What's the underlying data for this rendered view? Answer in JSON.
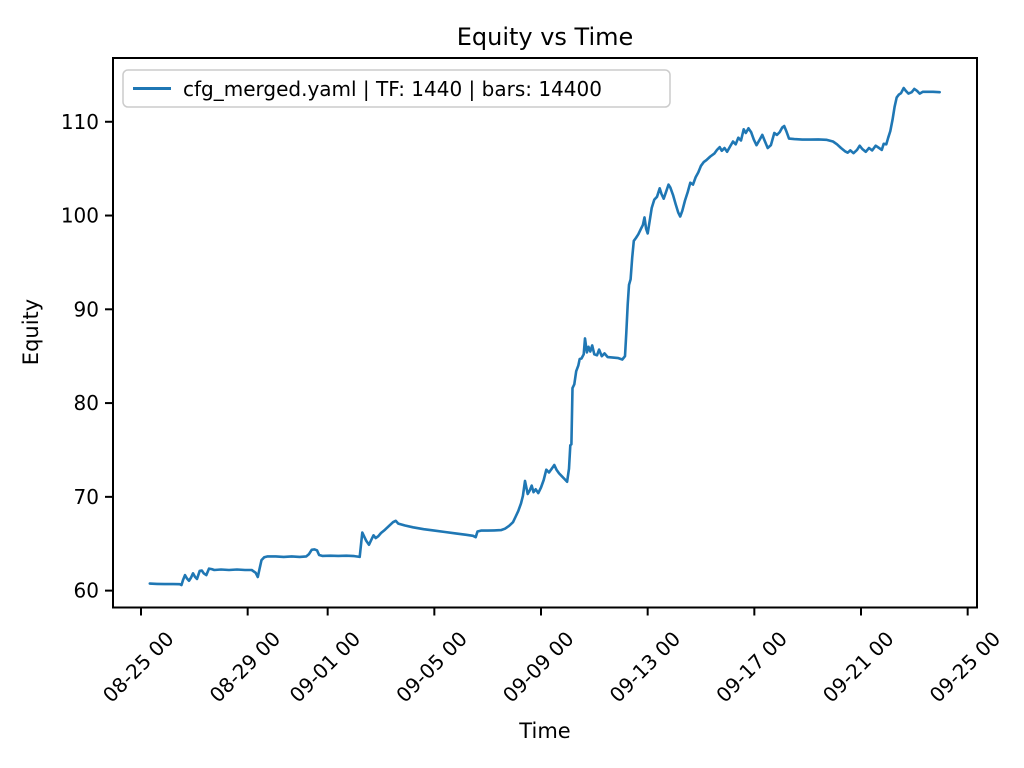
{
  "figure": {
    "title": "Equity vs Time",
    "x_label": "Time",
    "y_label": "Equity",
    "legend_label": "cfg_merged.yaml | TF: 1440 | bars: 14400",
    "colors": {
      "line": "#1f77b4",
      "text": "#000000",
      "legend_border": "#cccccc",
      "background": "#ffffff"
    }
  },
  "chart_data": {
    "type": "line",
    "title": "Equity vs Time",
    "xlabel": "Time",
    "ylabel": "Equity",
    "grid": false,
    "legend_position": "upper left",
    "legend_entries": [
      "cfg_merged.yaml | TF: 1440 | bars: 14400"
    ],
    "x_axis": {
      "tick_labels": [
        "08-25 00",
        "08-29 00",
        "09-01 00",
        "09-05 00",
        "09-09 00",
        "09-13 00",
        "09-17 00",
        "09-21 00",
        "09-25 00"
      ],
      "tick_days": [
        0,
        4,
        7,
        11,
        15,
        19,
        23,
        27,
        31
      ],
      "domain_days": [
        -1.05,
        31.35
      ],
      "tick_label_rotation_deg": 45,
      "x_unit": "days since 08-25 00:00"
    },
    "y_axis": {
      "ticks": [
        60,
        70,
        80,
        90,
        100,
        110
      ],
      "domain": [
        58.2,
        116.8
      ]
    },
    "series": [
      {
        "name": "cfg_merged.yaml | TF: 1440 | bars: 14400",
        "color": "#1f77b4",
        "x_unit": "days since 08-25 00:00",
        "points": [
          [
            0.33,
            60.75
          ],
          [
            0.6,
            60.72
          ],
          [
            0.9,
            60.7
          ],
          [
            1.2,
            60.7
          ],
          [
            1.45,
            60.68
          ],
          [
            1.52,
            60.6
          ],
          [
            1.58,
            61.15
          ],
          [
            1.65,
            61.65
          ],
          [
            1.72,
            61.3
          ],
          [
            1.8,
            61.05
          ],
          [
            1.88,
            61.4
          ],
          [
            1.95,
            61.85
          ],
          [
            2.03,
            61.45
          ],
          [
            2.1,
            61.25
          ],
          [
            2.2,
            62.1
          ],
          [
            2.28,
            62.15
          ],
          [
            2.35,
            61.85
          ],
          [
            2.45,
            61.65
          ],
          [
            2.55,
            62.35
          ],
          [
            2.65,
            62.3
          ],
          [
            2.75,
            62.2
          ],
          [
            3.0,
            62.25
          ],
          [
            3.3,
            62.2
          ],
          [
            3.6,
            62.25
          ],
          [
            3.9,
            62.2
          ],
          [
            4.15,
            62.2
          ],
          [
            4.3,
            61.9
          ],
          [
            4.38,
            61.45
          ],
          [
            4.45,
            62.4
          ],
          [
            4.52,
            63.25
          ],
          [
            4.62,
            63.55
          ],
          [
            4.75,
            63.65
          ],
          [
            5.05,
            63.65
          ],
          [
            5.35,
            63.6
          ],
          [
            5.65,
            63.65
          ],
          [
            5.95,
            63.6
          ],
          [
            6.2,
            63.65
          ],
          [
            6.3,
            63.9
          ],
          [
            6.4,
            64.35
          ],
          [
            6.5,
            64.4
          ],
          [
            6.6,
            64.3
          ],
          [
            6.68,
            63.8
          ],
          [
            6.8,
            63.7
          ],
          [
            7.1,
            63.72
          ],
          [
            7.4,
            63.7
          ],
          [
            7.7,
            63.72
          ],
          [
            8.0,
            63.68
          ],
          [
            8.2,
            63.6
          ],
          [
            8.3,
            66.2
          ],
          [
            8.38,
            65.7
          ],
          [
            8.45,
            65.3
          ],
          [
            8.55,
            64.9
          ],
          [
            8.65,
            65.5
          ],
          [
            8.72,
            65.9
          ],
          [
            8.8,
            65.6
          ],
          [
            8.9,
            65.8
          ],
          [
            9.0,
            66.15
          ],
          [
            9.15,
            66.5
          ],
          [
            9.3,
            66.9
          ],
          [
            9.45,
            67.3
          ],
          [
            9.55,
            67.45
          ],
          [
            9.65,
            67.15
          ],
          [
            9.9,
            66.95
          ],
          [
            10.2,
            66.75
          ],
          [
            10.6,
            66.55
          ],
          [
            11.0,
            66.4
          ],
          [
            11.4,
            66.25
          ],
          [
            11.8,
            66.1
          ],
          [
            12.2,
            65.95
          ],
          [
            12.45,
            65.85
          ],
          [
            12.55,
            65.7
          ],
          [
            12.62,
            66.3
          ],
          [
            12.75,
            66.4
          ],
          [
            13.0,
            66.4
          ],
          [
            13.25,
            66.42
          ],
          [
            13.5,
            66.45
          ],
          [
            13.65,
            66.6
          ],
          [
            13.8,
            66.9
          ],
          [
            13.95,
            67.3
          ],
          [
            14.05,
            67.9
          ],
          [
            14.15,
            68.5
          ],
          [
            14.25,
            69.3
          ],
          [
            14.32,
            70.1
          ],
          [
            14.4,
            71.7
          ],
          [
            14.5,
            70.3
          ],
          [
            14.58,
            70.7
          ],
          [
            14.65,
            71.2
          ],
          [
            14.72,
            70.5
          ],
          [
            14.8,
            70.8
          ],
          [
            14.9,
            70.4
          ],
          [
            15.0,
            71.0
          ],
          [
            15.1,
            71.8
          ],
          [
            15.2,
            72.9
          ],
          [
            15.3,
            72.6
          ],
          [
            15.4,
            73.0
          ],
          [
            15.5,
            73.4
          ],
          [
            15.58,
            72.9
          ],
          [
            15.68,
            72.5
          ],
          [
            15.78,
            72.2
          ],
          [
            15.88,
            71.9
          ],
          [
            15.98,
            71.6
          ],
          [
            16.05,
            73.0
          ],
          [
            16.1,
            75.5
          ],
          [
            16.14,
            75.6
          ],
          [
            16.18,
            81.6
          ],
          [
            16.25,
            82.0
          ],
          [
            16.32,
            83.4
          ],
          [
            16.4,
            84.0
          ],
          [
            16.45,
            84.7
          ],
          [
            16.52,
            84.75
          ],
          [
            16.6,
            85.2
          ],
          [
            16.65,
            86.9
          ],
          [
            16.72,
            85.4
          ],
          [
            16.78,
            86.0
          ],
          [
            16.85,
            85.5
          ],
          [
            16.92,
            86.15
          ],
          [
            17.0,
            85.2
          ],
          [
            17.1,
            85.1
          ],
          [
            17.18,
            85.7
          ],
          [
            17.28,
            85.0
          ],
          [
            17.38,
            85.3
          ],
          [
            17.5,
            84.9
          ],
          [
            17.7,
            84.85
          ],
          [
            17.9,
            84.8
          ],
          [
            18.05,
            84.65
          ],
          [
            18.15,
            85.0
          ],
          [
            18.2,
            87.5
          ],
          [
            18.25,
            90.5
          ],
          [
            18.3,
            92.6
          ],
          [
            18.36,
            93.2
          ],
          [
            18.42,
            95.5
          ],
          [
            18.48,
            97.3
          ],
          [
            18.56,
            97.6
          ],
          [
            18.65,
            98.0
          ],
          [
            18.75,
            98.6
          ],
          [
            18.82,
            99.0
          ],
          [
            18.88,
            99.8
          ],
          [
            18.94,
            98.6
          ],
          [
            19.0,
            98.1
          ],
          [
            19.08,
            99.5
          ],
          [
            19.15,
            100.8
          ],
          [
            19.25,
            101.7
          ],
          [
            19.35,
            102.0
          ],
          [
            19.45,
            102.9
          ],
          [
            19.52,
            102.3
          ],
          [
            19.6,
            101.8
          ],
          [
            19.7,
            102.6
          ],
          [
            19.78,
            103.3
          ],
          [
            19.85,
            103.0
          ],
          [
            19.95,
            102.2
          ],
          [
            20.05,
            101.2
          ],
          [
            20.15,
            100.3
          ],
          [
            20.22,
            99.9
          ],
          [
            20.3,
            100.5
          ],
          [
            20.4,
            101.6
          ],
          [
            20.5,
            102.5
          ],
          [
            20.6,
            103.5
          ],
          [
            20.7,
            103.3
          ],
          [
            20.8,
            104.1
          ],
          [
            20.9,
            104.6
          ],
          [
            21.0,
            105.3
          ],
          [
            21.1,
            105.7
          ],
          [
            21.2,
            105.9
          ],
          [
            21.35,
            106.3
          ],
          [
            21.5,
            106.6
          ],
          [
            21.6,
            107.0
          ],
          [
            21.7,
            107.3
          ],
          [
            21.78,
            106.9
          ],
          [
            21.88,
            107.2
          ],
          [
            21.98,
            106.8
          ],
          [
            22.1,
            107.4
          ],
          [
            22.2,
            107.9
          ],
          [
            22.3,
            107.6
          ],
          [
            22.4,
            108.3
          ],
          [
            22.5,
            108.0
          ],
          [
            22.6,
            109.2
          ],
          [
            22.68,
            108.8
          ],
          [
            22.78,
            109.3
          ],
          [
            22.88,
            108.9
          ],
          [
            22.98,
            108.1
          ],
          [
            23.08,
            107.5
          ],
          [
            23.2,
            108.1
          ],
          [
            23.3,
            108.6
          ],
          [
            23.4,
            107.9
          ],
          [
            23.5,
            107.2
          ],
          [
            23.62,
            107.5
          ],
          [
            23.75,
            108.8
          ],
          [
            23.85,
            108.6
          ],
          [
            23.95,
            108.9
          ],
          [
            24.05,
            109.4
          ],
          [
            24.12,
            109.55
          ],
          [
            24.2,
            109.0
          ],
          [
            24.3,
            108.2
          ],
          [
            24.5,
            108.15
          ],
          [
            24.8,
            108.1
          ],
          [
            25.1,
            108.1
          ],
          [
            25.4,
            108.12
          ],
          [
            25.7,
            108.08
          ],
          [
            25.95,
            107.9
          ],
          [
            26.1,
            107.6
          ],
          [
            26.25,
            107.2
          ],
          [
            26.4,
            106.85
          ],
          [
            26.5,
            106.7
          ],
          [
            26.6,
            106.95
          ],
          [
            26.72,
            106.65
          ],
          [
            26.85,
            107.0
          ],
          [
            26.95,
            107.45
          ],
          [
            27.05,
            107.1
          ],
          [
            27.18,
            106.8
          ],
          [
            27.3,
            107.2
          ],
          [
            27.42,
            106.95
          ],
          [
            27.55,
            107.45
          ],
          [
            27.68,
            107.2
          ],
          [
            27.78,
            107.0
          ],
          [
            27.85,
            107.65
          ],
          [
            27.95,
            107.6
          ],
          [
            28.02,
            108.3
          ],
          [
            28.1,
            109.0
          ],
          [
            28.18,
            110.2
          ],
          [
            28.26,
            111.6
          ],
          [
            28.34,
            112.6
          ],
          [
            28.42,
            112.9
          ],
          [
            28.5,
            113.05
          ],
          [
            28.6,
            113.6
          ],
          [
            28.68,
            113.3
          ],
          [
            28.78,
            113.0
          ],
          [
            28.9,
            113.15
          ],
          [
            29.0,
            113.5
          ],
          [
            29.1,
            113.3
          ],
          [
            29.2,
            113.0
          ],
          [
            29.32,
            113.2
          ],
          [
            29.5,
            113.2
          ],
          [
            29.7,
            113.2
          ],
          [
            29.95,
            113.15
          ]
        ]
      }
    ]
  }
}
